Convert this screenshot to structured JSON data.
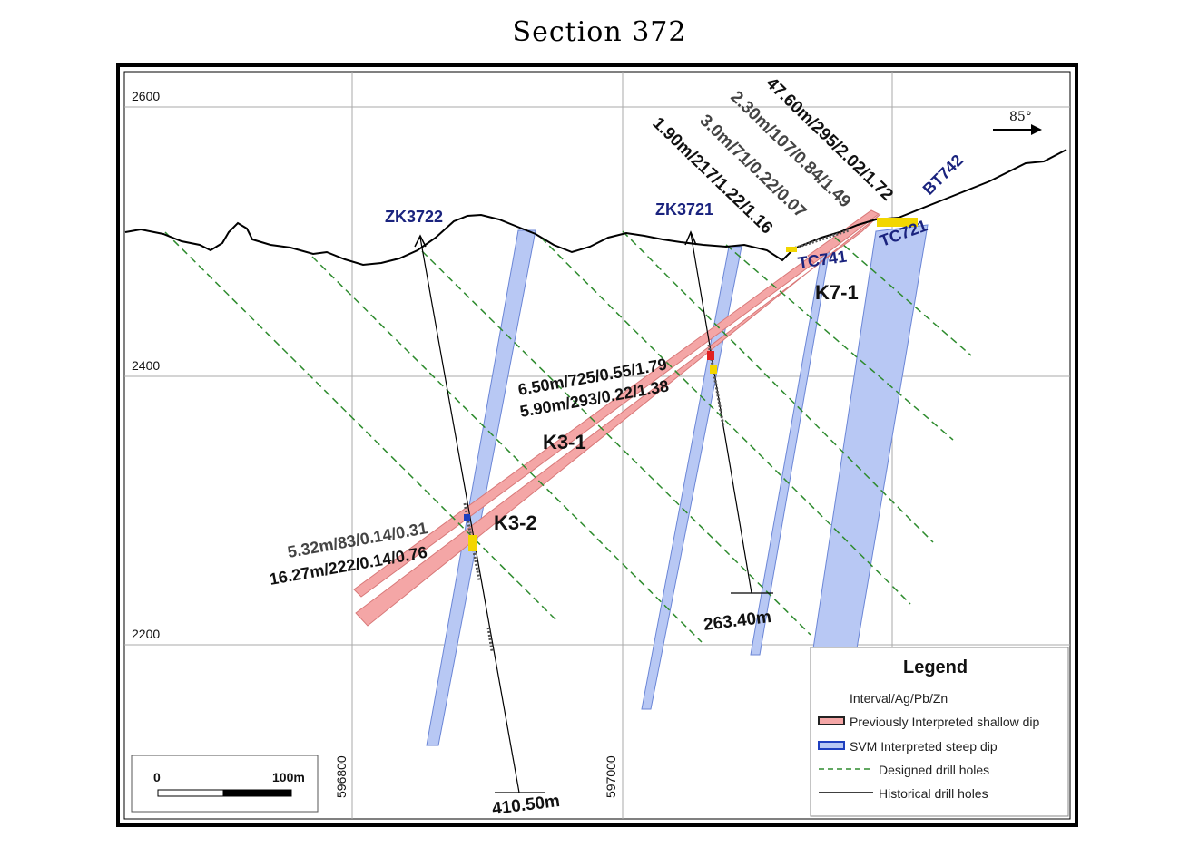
{
  "title": "Section 372",
  "elevation_labels": [
    "2600",
    "2400",
    "2200"
  ],
  "easting_labels": [
    "596800",
    "597000"
  ],
  "direction_label": "85°",
  "drill_holes": {
    "zk3722": {
      "name": "ZK3722",
      "depth": "410.50m"
    },
    "zk3721": {
      "name": "ZK3721",
      "depth": "263.40m"
    }
  },
  "trenches": {
    "tc741": "TC741",
    "tc721": "TC721",
    "bt742": "BT742"
  },
  "zones": {
    "k7_1": "K7-1",
    "k3_1": "K3-1",
    "k3_2": "K3-2"
  },
  "intercepts": {
    "i1": "47.60m/295/2.02/1.72",
    "i2": "2.30m/107/0.84/1.49",
    "i3": "3.0m/71/0.22/0.07",
    "i4": "1.90m/217/1.22/1.16",
    "i5": "6.50m/725/0.55/1.79",
    "i6": "5.90m/293/0.22/1.38",
    "i7": "5.32m/83/0.14/0.31",
    "i8": "16.27m/222/0.14/0.76"
  },
  "scale_bar": {
    "start": "0",
    "end": "100m"
  },
  "legend": {
    "title": "Legend",
    "header": "Interval/Ag/Pb/Zn",
    "items": [
      {
        "label": "Previously Interpreted shallow dip"
      },
      {
        "label": "SVM Interpreted steep dip"
      },
      {
        "label": "Designed drill holes"
      },
      {
        "label": "Historical drill holes"
      }
    ]
  },
  "colors": {
    "shallow_dip_fill": "#f4a6a6",
    "steep_dip_fill": "#b8c8f4",
    "designed_hole": "#2e8b2e",
    "historical_hole": "#000000",
    "label_blue": "#1a237e"
  }
}
